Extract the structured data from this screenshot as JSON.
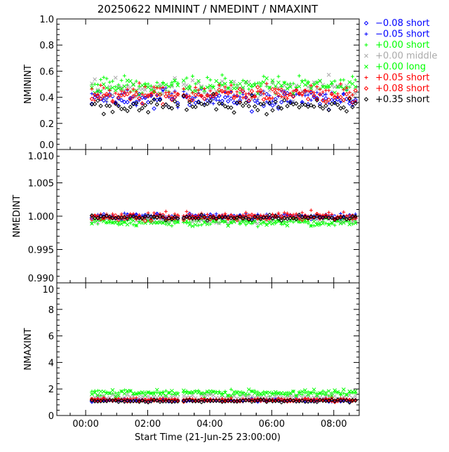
{
  "chart_data": {
    "type": "scatter",
    "title": "20250622 NMININT / NMEDINT / NMAXINT",
    "xlabel": "Start Time (21-Jun-25 23:00:00)",
    "xlim_hours": [
      -0.93,
      8.82
    ],
    "xticks": [
      {
        "v": 0,
        "label": "00:00"
      },
      {
        "v": 2,
        "label": "02:00"
      },
      {
        "v": 4,
        "label": "04:00"
      },
      {
        "v": 6,
        "label": "06:00"
      },
      {
        "v": 8,
        "label": "08:00"
      }
    ],
    "data_range_hours": [
      0.2,
      8.7
    ],
    "gap_hours": [
      3.05,
      3.15
    ],
    "legend": [
      {
        "label": "−0.08 short",
        "color": "#0000ff",
        "marker": "diamond"
      },
      {
        "label": "−0.05 short",
        "color": "#0000ff",
        "marker": "plus"
      },
      {
        "label": "+0.00 short",
        "color": "#00ff00",
        "marker": "plus"
      },
      {
        "label": "+0.00 middle",
        "color": "#aaaaaa",
        "marker": "cross"
      },
      {
        "label": "+0.00 long",
        "color": "#00ff00",
        "marker": "cross"
      },
      {
        "label": "+0.05 short",
        "color": "#ff0000",
        "marker": "plus"
      },
      {
        "label": "+0.08 short",
        "color": "#ff0000",
        "marker": "diamond"
      },
      {
        "label": "+0.35 short",
        "color": "#000000",
        "marker": "diamond"
      }
    ],
    "legend_position": "right",
    "panels": [
      {
        "ylabel": "NMININT",
        "ylim": [
          0,
          1.0
        ],
        "yticks": [
          "0.0",
          "0.2",
          "0.4",
          "0.6",
          "0.8",
          "1.0"
        ],
        "series_levels": [
          0.38,
          0.4,
          0.5,
          0.46,
          0.48,
          0.44,
          0.41,
          0.34
        ],
        "series_spread": [
          0.03,
          0.03,
          0.03,
          0.04,
          0.03,
          0.03,
          0.03,
          0.03
        ]
      },
      {
        "ylabel": "NMEDINT",
        "ylim": [
          0.99,
          1.01
        ],
        "yticks": [
          "0.990",
          "0.995",
          "1.000",
          "1.005",
          "1.010"
        ],
        "series_levels": [
          0.9999,
          1.0,
          0.9991,
          0.9995,
          0.9991,
          1.0001,
          0.9998,
          0.9998
        ],
        "series_spread": [
          0.0002,
          0.0002,
          0.0003,
          0.0003,
          0.0003,
          0.0003,
          0.0002,
          0.0002
        ]
      },
      {
        "ylabel": "NMAXINT",
        "ylim": [
          0,
          10
        ],
        "yticks": [
          "0",
          "2",
          "4",
          "6",
          "8",
          "10"
        ],
        "series_levels": [
          1.15,
          1.15,
          1.7,
          1.4,
          1.7,
          1.2,
          1.15,
          1.1
        ],
        "series_spread": [
          0.05,
          0.05,
          0.12,
          0.1,
          0.12,
          0.06,
          0.05,
          0.05
        ]
      }
    ]
  }
}
